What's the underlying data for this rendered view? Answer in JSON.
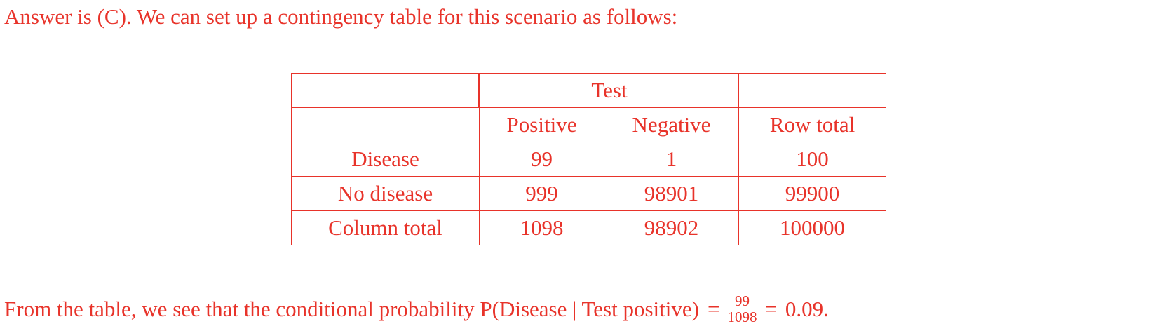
{
  "intro_text": "Answer is (C). We can set up a contingency table for this scenario as follows:",
  "table": {
    "group_header": "Test",
    "column_headers": [
      "Positive",
      "Negative",
      "Row total"
    ],
    "rows": [
      {
        "label": "Disease",
        "cells": [
          "99",
          "1",
          "100"
        ]
      },
      {
        "label": "No disease",
        "cells": [
          "999",
          "98901",
          "99900"
        ]
      },
      {
        "label": "Column total",
        "cells": [
          "1098",
          "98902",
          "100000"
        ]
      }
    ]
  },
  "conclusion": {
    "prefix": "From the table, we see that the conditional probability P(Disease | Test positive)",
    "eq1": "=",
    "numerator": "99",
    "denominator": "1098",
    "eq2": "=",
    "result": "0.09."
  },
  "colors": {
    "text": "#e8332a"
  }
}
